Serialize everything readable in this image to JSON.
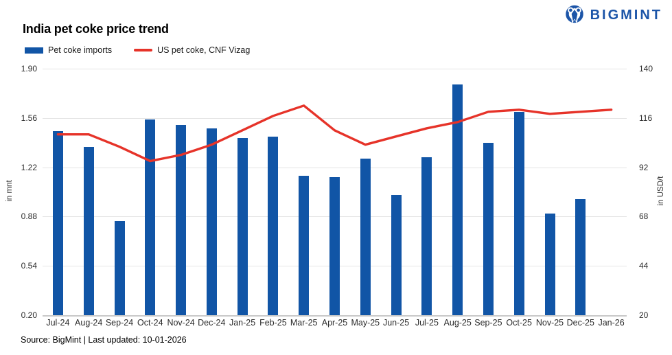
{
  "header": {
    "brand": "BIGMINT",
    "logo_icon": "bigmint-person-icon"
  },
  "title": "India pet coke price trend",
  "legend": [
    {
      "label": "Pet coke imports",
      "type": "bar",
      "color": "#1155A6"
    },
    {
      "label": "US pet coke, CNF Vizag",
      "type": "line",
      "color": "#E63329"
    }
  ],
  "footer": "Source: BigMint | Last updated: 10-01-2026",
  "colors": {
    "bar": "#1155A6",
    "line": "#E63329",
    "brand": "#1C55A8",
    "gridline": "#E4E4E4",
    "axis_baseline": "#C9C9C9"
  },
  "chart_data": {
    "type": "combo-bar-line",
    "title": "India pet coke price trend",
    "categories": [
      "Jul-24",
      "Aug-24",
      "Sep-24",
      "Oct-24",
      "Nov-24",
      "Dec-24",
      "Jan-25",
      "Feb-25",
      "Mar-25",
      "Apr-25",
      "May-25",
      "Jun-25",
      "Jul-25",
      "Aug-25",
      "Sep-25",
      "Oct-25",
      "Nov-25",
      "Dec-25",
      "Jan-26"
    ],
    "series": [
      {
        "name": "Pet coke imports",
        "type": "bar",
        "axis": "left",
        "values": [
          1.47,
          1.36,
          0.85,
          1.55,
          1.51,
          1.49,
          1.42,
          1.43,
          1.16,
          1.15,
          1.28,
          1.03,
          1.29,
          1.79,
          1.39,
          1.6,
          0.9,
          1.0,
          null
        ]
      },
      {
        "name": "US pet coke, CNF Vizag",
        "type": "line",
        "axis": "right",
        "values": [
          108,
          108,
          102,
          95,
          98,
          103,
          110,
          117,
          122,
          110,
          103,
          107,
          111,
          114,
          119,
          120,
          118,
          119,
          120
        ]
      }
    ],
    "y_left": {
      "label": "in mnt",
      "min": 0.2,
      "max": 1.9,
      "ticks": [
        1.9,
        1.56,
        1.22,
        0.88,
        0.54,
        0.2
      ],
      "tick_labels": [
        "1.90",
        "1.56",
        "1.22",
        "0.88",
        "0.54",
        "0.20"
      ]
    },
    "y_right": {
      "label": "in USD/t",
      "min": 20,
      "max": 140,
      "ticks": [
        140,
        116,
        92,
        68,
        44,
        20
      ],
      "tick_labels": [
        "140",
        "116",
        "92",
        "68",
        "44",
        "20"
      ]
    },
    "grid": true,
    "legend_position": "top-left"
  }
}
